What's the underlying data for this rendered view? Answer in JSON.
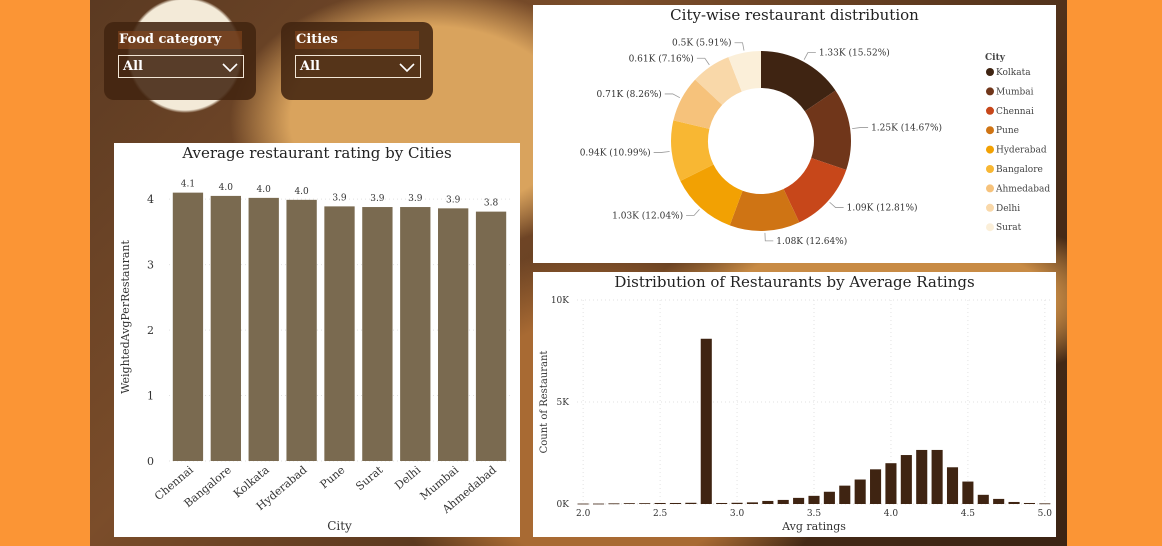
{
  "slicers": {
    "food": {
      "title": "Food category",
      "value": "All",
      "icon": "chevron-down-icon"
    },
    "cities": {
      "title": "Cities",
      "value": "All",
      "icon": "chevron-down-icon"
    }
  },
  "colors": {
    "page_background": "#fb9535",
    "bar": "#7a6a50",
    "hist_bar": "#3f2412",
    "city_palette": [
      "#3f2412",
      "#70361a",
      "#c7471a",
      "#cf7414",
      "#f2a103",
      "#f8b733",
      "#f6c27b",
      "#f9d8a9",
      "#fbefd9"
    ]
  },
  "chart_data": [
    {
      "type": "bar",
      "title": "Average restaurant rating by Cities",
      "xlabel": "City",
      "ylabel": "WeightedAvgPerRestaurant",
      "categories": [
        "Chennai",
        "Bangalore",
        "Kolkata",
        "Hyderabad",
        "Pune",
        "Surat",
        "Delhi",
        "Mumbai",
        "Ahmedabad"
      ],
      "values": [
        4.1,
        4.05,
        4.02,
        3.99,
        3.89,
        3.88,
        3.88,
        3.86,
        3.81
      ],
      "data_labels": [
        "4.1",
        "4.0",
        "4.0",
        "4.0",
        "3.9",
        "3.9",
        "3.9",
        "3.9",
        "3.8"
      ],
      "ylim": [
        0,
        4.4
      ],
      "yticks": [
        "0",
        "1",
        "2",
        "3",
        "4"
      ],
      "grid": true
    },
    {
      "type": "pie",
      "title": "City-wise restaurant distribution",
      "legend_title": "City",
      "legend_position": "right",
      "labels": [
        "Kolkata",
        "Mumbai",
        "Chennai",
        "Pune",
        "Hyderabad",
        "Bangalore",
        "Ahmedabad",
        "Delhi",
        "Surat"
      ],
      "values": [
        15.52,
        14.67,
        12.81,
        12.64,
        12.04,
        10.99,
        8.26,
        7.16,
        5.91
      ],
      "data_labels": [
        "1.33K (15.52%)",
        "1.25K (14.67%)",
        "1.09K (12.81%)",
        "1.08K (12.64%)",
        "1.03K (12.04%)",
        "0.94K (10.99%)",
        "0.71K (8.26%)",
        "0.61K (7.16%)",
        "0.5K (5.91%)"
      ]
    },
    {
      "type": "bar",
      "title": "Distribution of Restaurants by Average Ratings",
      "xlabel": "Avg ratings",
      "ylabel": "Count of Restaurant",
      "x": [
        2.0,
        2.1,
        2.2,
        2.3,
        2.4,
        2.5,
        2.6,
        2.7,
        2.8,
        2.9,
        3.0,
        3.1,
        3.2,
        3.3,
        3.4,
        3.5,
        3.6,
        3.7,
        3.8,
        3.9,
        4.0,
        4.1,
        4.2,
        4.3,
        4.4,
        4.5,
        4.6,
        4.7,
        4.8,
        4.9,
        5.0
      ],
      "values": [
        20,
        20,
        30,
        40,
        40,
        50,
        50,
        60,
        8100,
        50,
        60,
        80,
        150,
        200,
        300,
        400,
        600,
        900,
        1200,
        1700,
        2000,
        2400,
        2650,
        2650,
        1800,
        1100,
        450,
        250,
        100,
        50,
        30
      ],
      "xlim": [
        1.96,
        5.04
      ],
      "ylim": [
        0,
        10000
      ],
      "xticks": [
        "2.0",
        "2.5",
        "3.0",
        "3.5",
        "4.0",
        "4.5",
        "5.0"
      ],
      "yticks": [
        "0K",
        "5K",
        "10K"
      ],
      "grid": true
    }
  ]
}
